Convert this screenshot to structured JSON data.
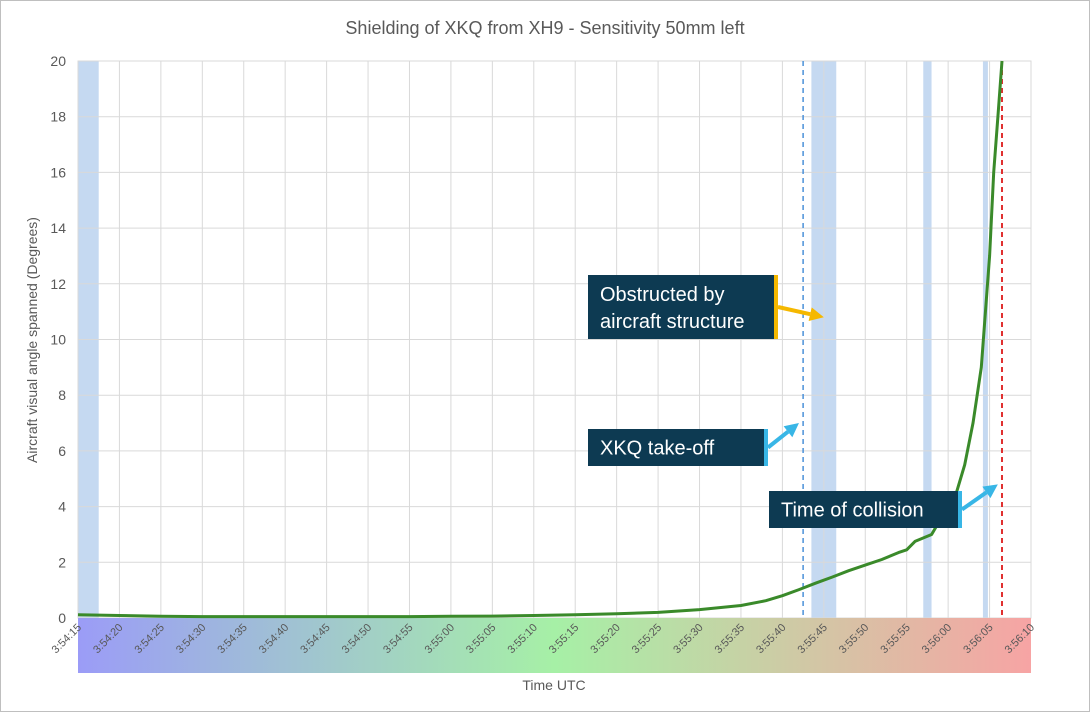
{
  "chart_data": {
    "type": "line",
    "title": "Shielding of XKQ from XH9 - Sensitivity 50mm left",
    "xlabel": "Time UTC",
    "ylabel": "Aircraft visual angle spanned (Degrees)",
    "x_range": [
      "3:54:15",
      "3:56:10"
    ],
    "ylim": [
      0,
      20
    ],
    "y_ticks": [
      "0",
      "2",
      "4",
      "6",
      "8",
      "10",
      "12",
      "14",
      "16",
      "18",
      "20"
    ],
    "x_ticks": [
      "3:54:15",
      "3:54:20",
      "3:54:25",
      "3:54:30",
      "3:54:35",
      "3:54:40",
      "3:54:45",
      "3:54:50",
      "3:54:55",
      "3:55:00",
      "3:55:05",
      "3:55:10",
      "3:55:15",
      "3:55:20",
      "3:55:25",
      "3:55:30",
      "3:55:35",
      "3:55:40",
      "3:55:45",
      "3:55:50",
      "3:55:55",
      "3:56:00",
      "3:56:05",
      "3:56:10"
    ],
    "grid": true,
    "legend": "none",
    "series": [
      {
        "color": "#3a8a2a",
        "points": [
          [
            "3:54:15",
            0.12
          ],
          [
            "3:54:20",
            0.09
          ],
          [
            "3:54:25",
            0.06
          ],
          [
            "3:54:30",
            0.05
          ],
          [
            "3:54:35",
            0.05
          ],
          [
            "3:54:40",
            0.05
          ],
          [
            "3:54:45",
            0.05
          ],
          [
            "3:54:50",
            0.05
          ],
          [
            "3:54:55",
            0.05
          ],
          [
            "3:55:00",
            0.06
          ],
          [
            "3:55:05",
            0.07
          ],
          [
            "3:55:10",
            0.09
          ],
          [
            "3:55:15",
            0.12
          ],
          [
            "3:55:20",
            0.15
          ],
          [
            "3:55:25",
            0.2
          ],
          [
            "3:55:30",
            0.3
          ],
          [
            "3:55:35",
            0.45
          ],
          [
            "3:55:38",
            0.62
          ],
          [
            "3:55:40",
            0.8
          ],
          [
            "3:55:42",
            1.02
          ],
          [
            "3:55:44",
            1.25
          ],
          [
            "3:55:46",
            1.47
          ],
          [
            "3:55:48",
            1.7
          ],
          [
            "3:55:50",
            1.9
          ],
          [
            "3:55:52",
            2.1
          ],
          [
            "3:55:54",
            2.35
          ],
          [
            "3:55:55",
            2.45
          ],
          [
            "3:55:56",
            2.75
          ],
          [
            "3:55:58",
            3.0
          ],
          [
            "3:55:59",
            3.5
          ],
          [
            "3:56:00",
            3.7
          ],
          [
            "3:56:01",
            4.5
          ],
          [
            "3:56:02",
            5.5
          ],
          [
            "3:56:03",
            7.0
          ],
          [
            "3:56:04",
            9.0
          ],
          [
            "3:56:05",
            13.0
          ],
          [
            "3:56:05.5",
            16.0
          ],
          [
            "3:56:06",
            18.0
          ],
          [
            "3:56:06.5",
            20.0
          ]
        ]
      }
    ],
    "shaded_regions": [
      {
        "start": "3:54:15",
        "end": "3:54:17.5",
        "color": "#c5d9f1"
      },
      {
        "start": "3:55:43.5",
        "end": "3:55:46.5",
        "color": "#c5d9f1"
      },
      {
        "start": "3:55:57",
        "end": "3:55:58",
        "color": "#c5d9f1"
      },
      {
        "start": "3:56:04.2",
        "end": "3:56:04.8",
        "color": "#c5d9f1"
      }
    ],
    "reference_lines": [
      {
        "x": "3:55:42.5",
        "color": "#4a90d9",
        "style": "dashed"
      },
      {
        "x": "3:56:06.5",
        "color": "#e03030",
        "style": "dashed"
      }
    ],
    "annotations": [
      {
        "text_lines": [
          "Obstructed by",
          "aircraft structure"
        ],
        "edge_color": "#f5b800",
        "arrow_color": "#f5b800",
        "target": [
          "3:55:45",
          10.8
        ]
      },
      {
        "text_lines": [
          "XKQ take-off"
        ],
        "edge_color": "#38b6e6",
        "arrow_color": "#38b6e6",
        "target": [
          "3:55:42",
          7.0
        ]
      },
      {
        "text_lines": [
          "Time of collision"
        ],
        "edge_color": "#38b6e6",
        "arrow_color": "#38b6e6",
        "target": [
          "3:56:06",
          4.8
        ]
      }
    ],
    "time_band_colors": [
      "#9b9cf7",
      "#a6f0a6",
      "#f7a4a4"
    ]
  }
}
